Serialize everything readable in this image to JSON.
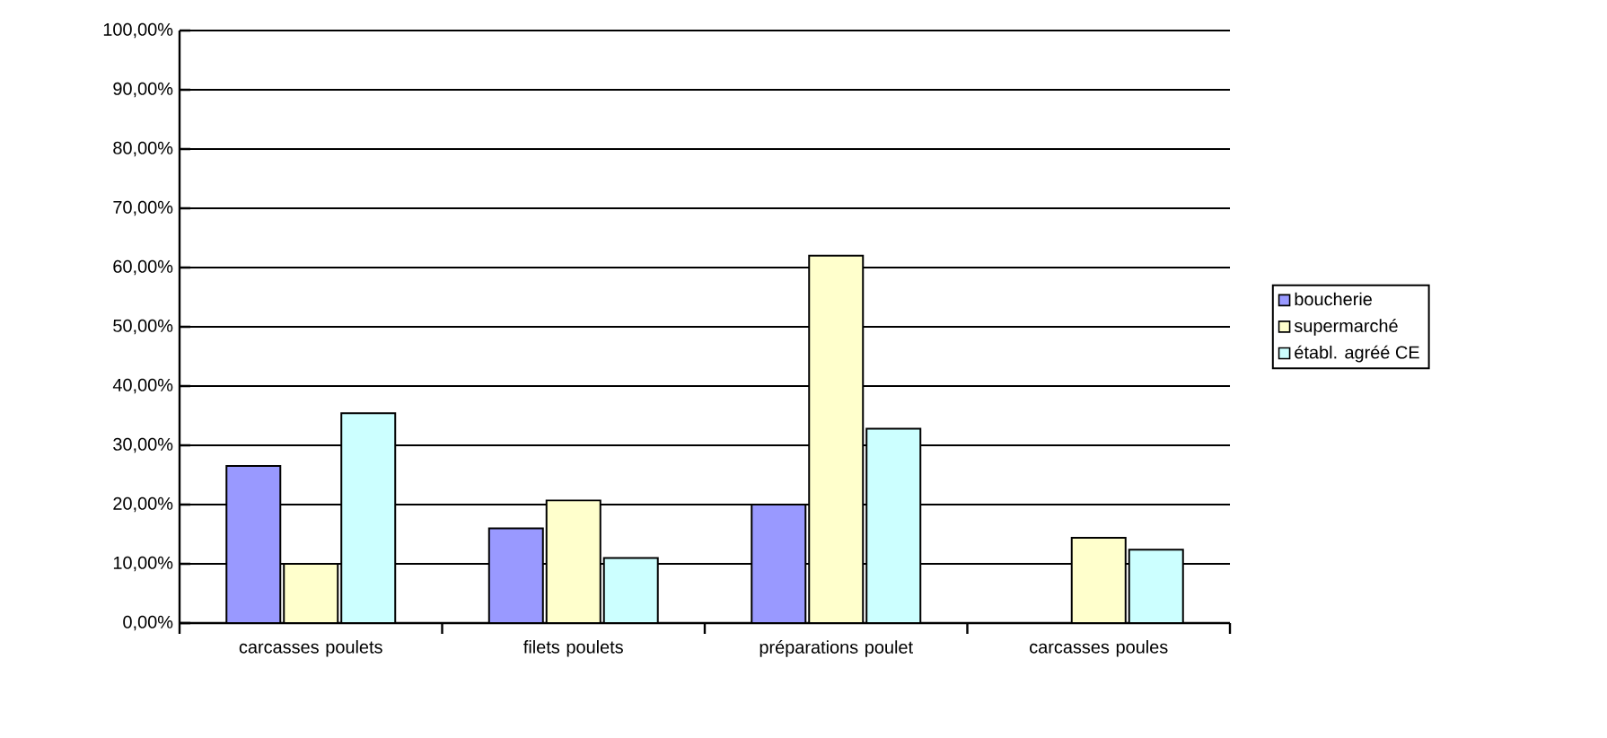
{
  "chart_data": {
    "type": "bar",
    "categories": [
      "carcasses poulets",
      "filets poulets",
      "préparations poulet",
      "carcasses poules"
    ],
    "series": [
      {
        "name": "boucherie",
        "color": "#9999ff",
        "values": [
          26.5,
          16,
          20,
          0
        ]
      },
      {
        "name": "supermarché",
        "color": "#ffffcc",
        "values": [
          10,
          20.7,
          62,
          14.4
        ]
      },
      {
        "name": "établ. agréé CE",
        "color": "#ccffff",
        "values": [
          35.4,
          11,
          32.8,
          12.4
        ]
      }
    ],
    "ylim": [
      0,
      100
    ],
    "yticks": [
      {
        "value": 0,
        "label": "0,00%"
      },
      {
        "value": 10,
        "label": "10,00%"
      },
      {
        "value": 20,
        "label": "20,00%"
      },
      {
        "value": 30,
        "label": "30,00%"
      },
      {
        "value": 40,
        "label": "40,00%"
      },
      {
        "value": 50,
        "label": "50,00%"
      },
      {
        "value": 60,
        "label": "60,00%"
      },
      {
        "value": 70,
        "label": "70,00%"
      },
      {
        "value": 80,
        "label": "80,00%"
      },
      {
        "value": 90,
        "label": "90,00%"
      },
      {
        "value": 100,
        "label": "100,00%"
      }
    ],
    "grid": "y",
    "legend": "right"
  }
}
